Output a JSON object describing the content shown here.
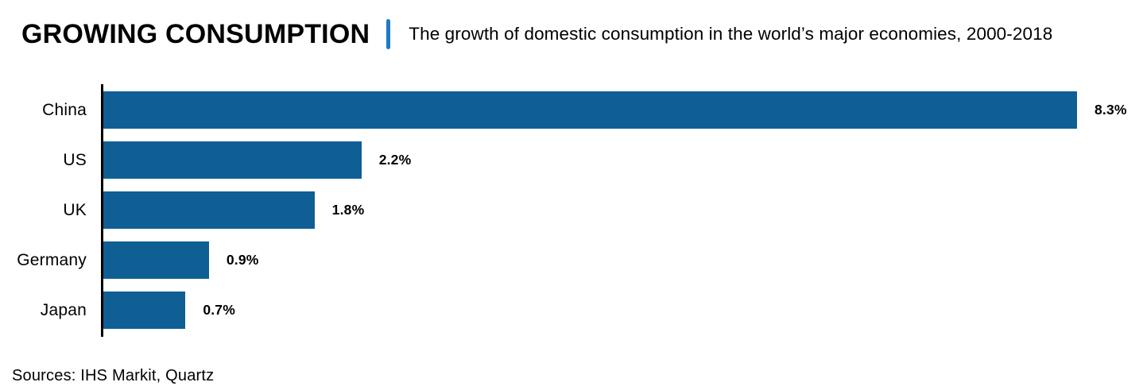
{
  "header": {
    "title": "GROWING CONSUMPTION",
    "subtitle": "The growth of domestic consumption in the world’s major economies, 2000-2018"
  },
  "chart_data": {
    "type": "bar",
    "orientation": "horizontal",
    "title": "GROWING CONSUMPTION",
    "subtitle": "The growth of domestic consumption in the world’s major economies, 2000-2018",
    "categories": [
      "China",
      "US",
      "UK",
      "Germany",
      "Japan"
    ],
    "values": [
      8.3,
      2.2,
      1.8,
      0.9,
      0.7
    ],
    "value_labels": [
      "8.3%",
      "2.2%",
      "1.8%",
      "0.9%",
      "0.7%"
    ],
    "xlabel": "",
    "ylabel": "",
    "xlim": [
      0,
      8.3
    ],
    "grid": false,
    "legend": false,
    "bar_color": "#0f5f94",
    "axis_color": "#000000"
  },
  "footer": {
    "sources": "Sources: IHS Markit, Quartz"
  },
  "colors": {
    "bar_blue": "#0f5f94",
    "separator_blue": "#1f7ac4",
    "text": "#000000",
    "background": "#ffffff"
  }
}
